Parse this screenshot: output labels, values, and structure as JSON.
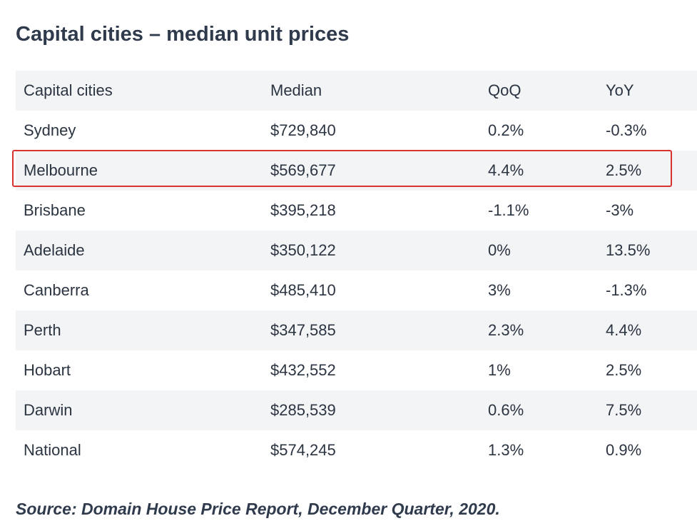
{
  "title": "Capital cities – median unit prices",
  "table": {
    "headers": [
      "Capital cities",
      "Median",
      "QoQ",
      "YoY"
    ],
    "rows": [
      [
        "Sydney",
        "$729,840",
        "0.2%",
        "-0.3%"
      ],
      [
        "Melbourne",
        "$569,677",
        "4.4%",
        "2.5%"
      ],
      [
        "Brisbane",
        "$395,218",
        "-1.1%",
        "-3%"
      ],
      [
        "Adelaide",
        "$350,122",
        "0%",
        "13.5%"
      ],
      [
        "Canberra",
        "$485,410",
        "3%",
        "-1.3%"
      ],
      [
        "Perth",
        "$347,585",
        "2.3%",
        "4.4%"
      ],
      [
        "Hobart",
        "$432,552",
        "1%",
        "2.5%"
      ],
      [
        "Darwin",
        "$285,539",
        "0.6%",
        "7.5%"
      ],
      [
        "National",
        "$574,245",
        "1.3%",
        "0.9%"
      ]
    ]
  },
  "highlight": {
    "row": "Melbourne",
    "color": "#d9332f"
  },
  "source": "Source: Domain House Price Report, December Quarter, 2020."
}
